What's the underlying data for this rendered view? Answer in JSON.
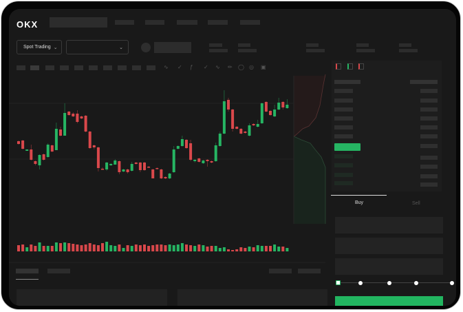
{
  "header": {
    "logo": "OKX",
    "market_select": {
      "label": "Spot Trading",
      "icon": "chevron-down-icon"
    },
    "pair_select": {
      "value": "",
      "icon": "chevron-down-icon"
    }
  },
  "trade_panel": {
    "tabs": [
      {
        "label": "Buy",
        "active": true
      },
      {
        "label": "Sell",
        "active": false
      }
    ],
    "slider_level": 0,
    "slider_steps": 5
  },
  "colors": {
    "up": "#26b563",
    "down": "#d9484b",
    "background": "#191919",
    "button": "#22b560"
  },
  "chart_data": {
    "type": "candlestick",
    "note_axes": "",
    "candles": [
      [
        67,
        68,
        62,
        63
      ],
      [
        68,
        69,
        55,
        56
      ],
      [
        53,
        55,
        53,
        55
      ],
      [
        55,
        62,
        39,
        40
      ],
      [
        38,
        39,
        32,
        34
      ],
      [
        32,
        48,
        26,
        47
      ],
      [
        48,
        49,
        39,
        40
      ],
      [
        44,
        64,
        43,
        62
      ],
      [
        61,
        62,
        51,
        52
      ],
      [
        54,
        94,
        54,
        85
      ],
      [
        84,
        88,
        74,
        75
      ],
      [
        75,
        122,
        75,
        108
      ],
      [
        110,
        111,
        104,
        105
      ],
      [
        107,
        109,
        102,
        103
      ],
      [
        107,
        112,
        93,
        95
      ],
      [
        103,
        104,
        99,
        100
      ],
      [
        104,
        105,
        80,
        81
      ],
      [
        81,
        82,
        56,
        57
      ],
      [
        61,
        62,
        55,
        58
      ],
      [
        58,
        59,
        23,
        28
      ],
      [
        27,
        29,
        26,
        26
      ],
      [
        26,
        37,
        24,
        36
      ],
      [
        32,
        35,
        31,
        34
      ],
      [
        33,
        41,
        33,
        39
      ],
      [
        38,
        39,
        19,
        22
      ],
      [
        23,
        27,
        22,
        26
      ],
      [
        26,
        27,
        20,
        22
      ],
      [
        24,
        37,
        23,
        34
      ],
      [
        36,
        37,
        33,
        34
      ],
      [
        36,
        37,
        22,
        25
      ],
      [
        36,
        37,
        24,
        25
      ],
      [
        30,
        31,
        28,
        29
      ],
      [
        26,
        27,
        13,
        13
      ],
      [
        28,
        29,
        26,
        27
      ],
      [
        26,
        27,
        12,
        13
      ],
      [
        15,
        16,
        12,
        13
      ],
      [
        13,
        21,
        12,
        20
      ],
      [
        22,
        60,
        21,
        55
      ],
      [
        56,
        61,
        55,
        60
      ],
      [
        60,
        75,
        59,
        70
      ],
      [
        69,
        70,
        56,
        57
      ],
      [
        64,
        69,
        38,
        40
      ],
      [
        38,
        41,
        36,
        40
      ],
      [
        42,
        43,
        36,
        37
      ],
      [
        35,
        40,
        34,
        39
      ],
      [
        40,
        41,
        30,
        38
      ],
      [
        38,
        39,
        35,
        36
      ],
      [
        38,
        65,
        37,
        61
      ],
      [
        60,
        81,
        59,
        78
      ],
      [
        78,
        141,
        77,
        125
      ],
      [
        127,
        130,
        110,
        113
      ],
      [
        113,
        114,
        81,
        85
      ],
      [
        88,
        89,
        84,
        85
      ],
      [
        85,
        86,
        77,
        78
      ],
      [
        81,
        82,
        78,
        79
      ],
      [
        75,
        93,
        74,
        90
      ],
      [
        92,
        93,
        89,
        90
      ],
      [
        88,
        98,
        87,
        92
      ],
      [
        93,
        123,
        92,
        122
      ],
      [
        124,
        125,
        109,
        110
      ],
      [
        111,
        112,
        104,
        105
      ],
      [
        103,
        120,
        102,
        113
      ],
      [
        113,
        130,
        112,
        123
      ],
      [
        124,
        125,
        113,
        116
      ],
      [
        115,
        128,
        114,
        120
      ]
    ],
    "volume": [
      9,
      10,
      6,
      10,
      8,
      13,
      8,
      8,
      8,
      13,
      12,
      13,
      12,
      11,
      10,
      9,
      10,
      12,
      10,
      9,
      12,
      14,
      9,
      8,
      10,
      5,
      9,
      8,
      10,
      9,
      10,
      8,
      9,
      10,
      10,
      9,
      10,
      9,
      10,
      12,
      10,
      9,
      8,
      10,
      9,
      7,
      8,
      8,
      5,
      6,
      3,
      2,
      3,
      6,
      5,
      7,
      6,
      9,
      8,
      8,
      8,
      10,
      7,
      7,
      5
    ]
  }
}
